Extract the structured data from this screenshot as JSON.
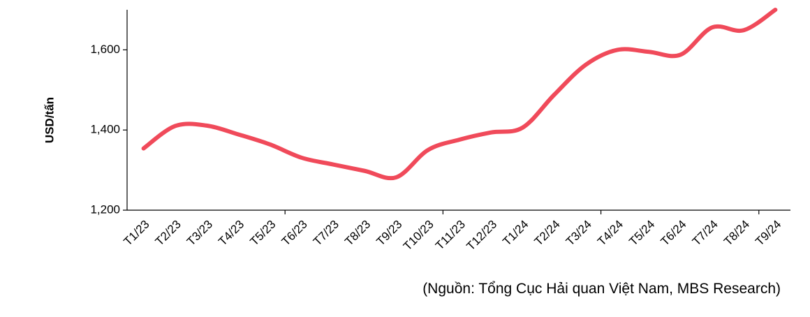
{
  "chart_data": {
    "type": "line",
    "y_label": "USD/tấn",
    "note": "(Nguồn: Tổng Cục Hải quan Việt Nam, MBS Research)",
    "categories": [
      "T1/23",
      "T2/23",
      "T3/23",
      "T4/23",
      "T5/23",
      "T6/23",
      "T7/23",
      "T8/23",
      "T9/23",
      "T10/23",
      "T11/23",
      "T12/23",
      "T1/24",
      "T2/24",
      "T3/24",
      "T4/24",
      "T5/24",
      "T6/24",
      "T7/24",
      "T8/24",
      "T9/24"
    ],
    "values": [
      1354,
      1410,
      1411,
      1389,
      1364,
      1331,
      1314,
      1298,
      1282,
      1350,
      1376,
      1394,
      1406,
      1488,
      1563,
      1600,
      1595,
      1588,
      1656,
      1649,
      1700
    ],
    "color": "#f04a5a",
    "ylim": [
      1200,
      1700
    ],
    "yticks": [
      {
        "value": 1200,
        "label": "1,200"
      },
      {
        "value": 1400,
        "label": "1,400"
      },
      {
        "value": 1600,
        "label": "1,600"
      }
    ]
  }
}
